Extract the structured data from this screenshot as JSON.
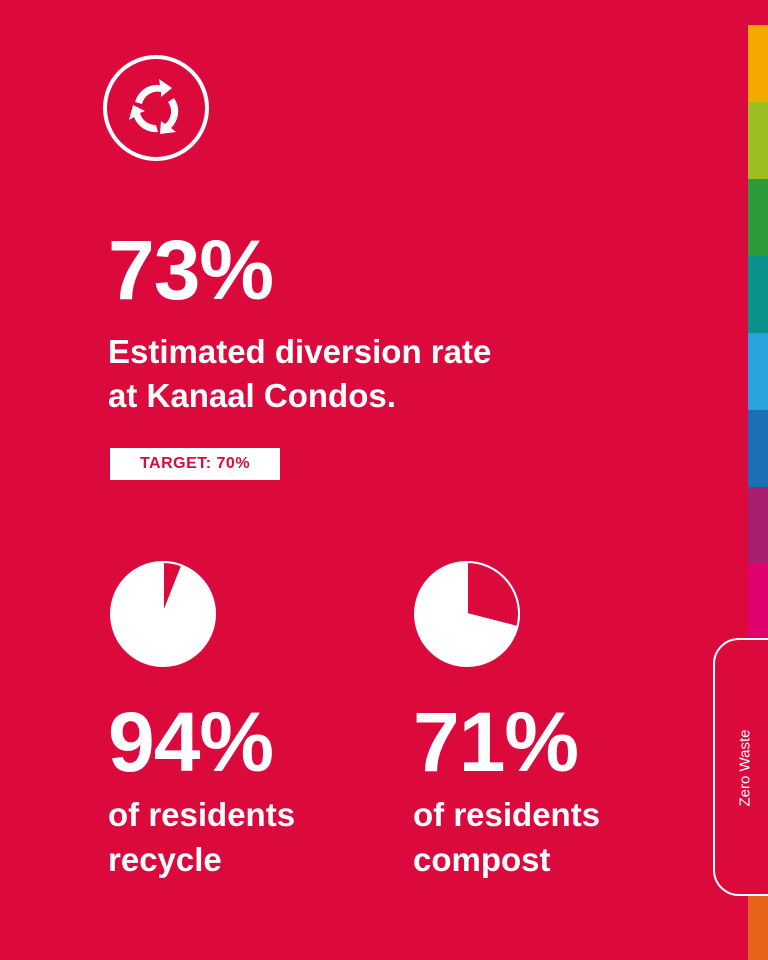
{
  "theme": {
    "background": "#dc0a3c",
    "foreground": "#ffffff",
    "strip_colors": [
      "#f5a800",
      "#9bbf22",
      "#2e9a3a",
      "#0a918c",
      "#2aa3dc",
      "#1c6fb5",
      "#a61f70",
      "#e0006e",
      "#dc0a3c",
      "#e8631a"
    ]
  },
  "logo": {
    "icon": "recycle-icon"
  },
  "headline": {
    "value": "73%",
    "description_lines": [
      "Estimated diversion rate",
      "at Kanaal Condos."
    ],
    "target": "TARGET: 70%"
  },
  "stats": [
    {
      "value": "94%",
      "percent": 94,
      "label_lines": [
        "of residents",
        "recycle"
      ]
    },
    {
      "value": "71%",
      "percent": 71,
      "label_lines": [
        "of residents",
        "compost"
      ]
    }
  ],
  "side_tab": {
    "label": "Zero Waste"
  }
}
